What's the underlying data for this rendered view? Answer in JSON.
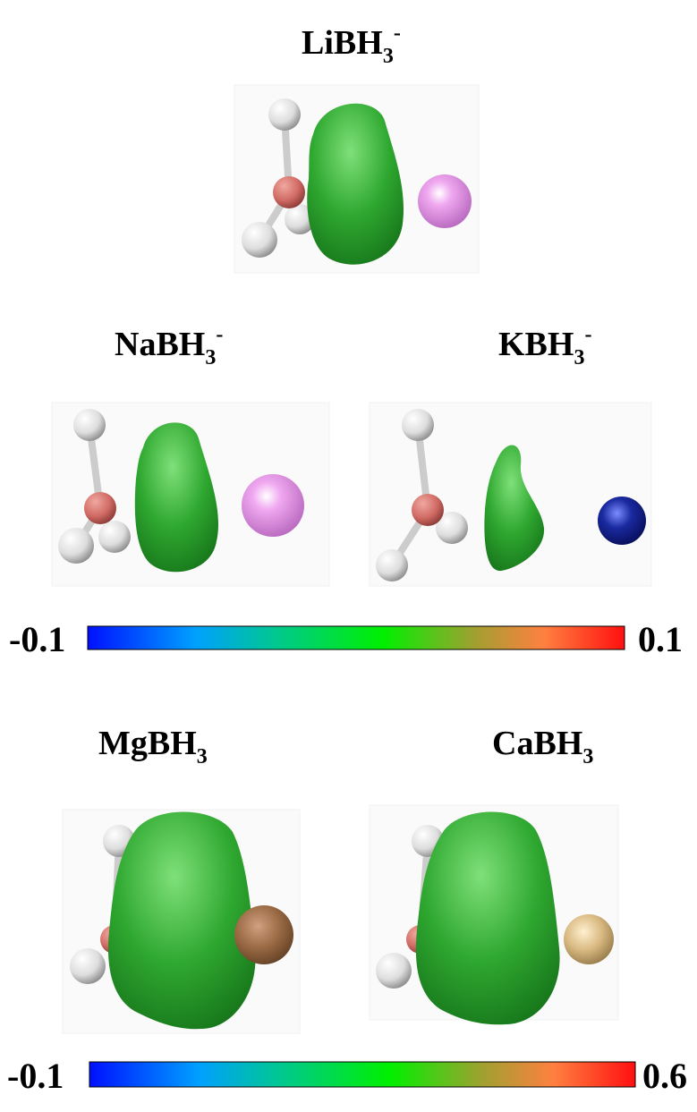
{
  "panels": [
    {
      "label": {
        "base": "LiBH",
        "sub": "3",
        "sup": "-"
      }
    },
    {
      "label": {
        "base": "NaBH",
        "sub": "3",
        "sup": "-"
      }
    },
    {
      "label": {
        "base": "KBH",
        "sub": "3",
        "sup": "-"
      }
    },
    {
      "label": {
        "base": "MgBH",
        "sub": "3"
      }
    },
    {
      "label": {
        "base": "CaBH",
        "sub": "3"
      }
    }
  ],
  "colorbars": [
    {
      "min": -0.1,
      "max": 0.1
    },
    {
      "min": -0.1,
      "max": 0.6
    }
  ]
}
